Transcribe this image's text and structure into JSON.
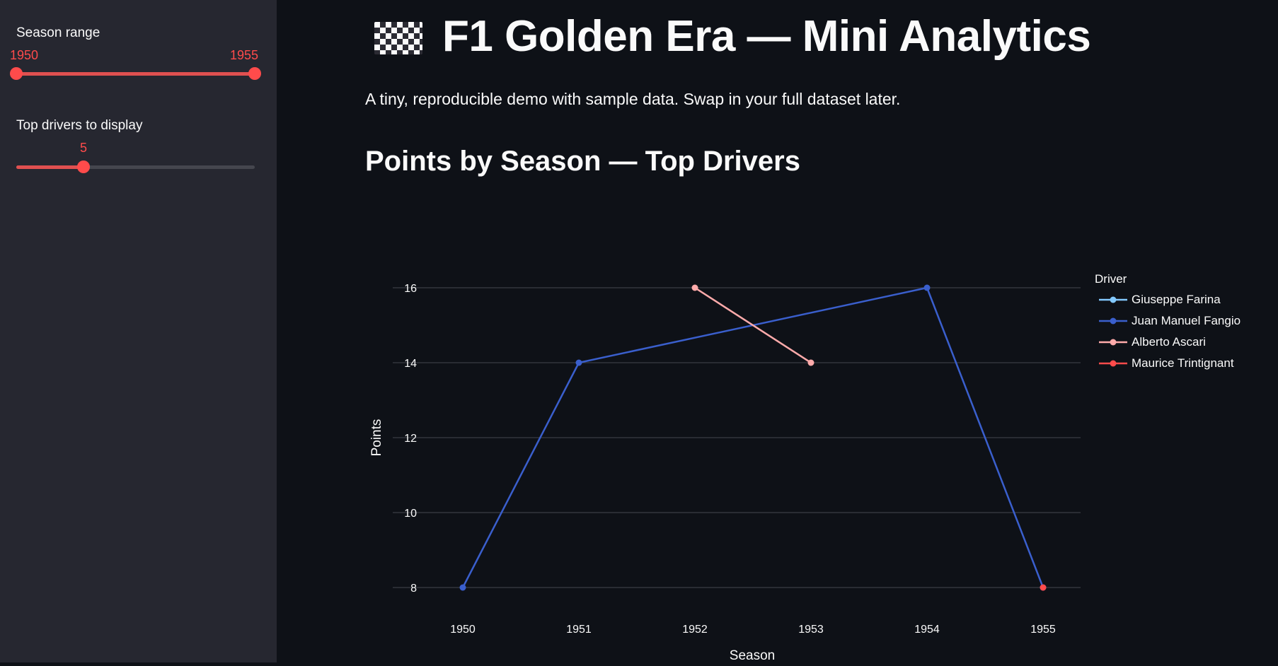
{
  "sidebar": {
    "season_range": {
      "label": "Season range",
      "min_label": "1950",
      "max_label": "1955",
      "min": 1950,
      "max": 1955,
      "low": 1950,
      "high": 1955
    },
    "top_drivers": {
      "label": "Top drivers to display",
      "value_label": "5",
      "value": 5,
      "fraction": 0.29
    }
  },
  "header": {
    "icon": "checkered-flag-icon",
    "title": "F1 Golden Era — Mini Analytics",
    "subtitle": "A tiny, reproducible demo with sample data. Swap in your full dataset later."
  },
  "section": {
    "title": "Points by Season — Top Drivers"
  },
  "chart_data": {
    "type": "line",
    "xlabel": "Season",
    "ylabel": "Points",
    "x": [
      1950,
      1951,
      1952,
      1953,
      1954,
      1955
    ],
    "xlim": [
      1950,
      1955
    ],
    "ylim": [
      8,
      16
    ],
    "yticks": [
      8,
      10,
      12,
      14,
      16
    ],
    "grid": true,
    "legend_title": "Driver",
    "legend_position": "right",
    "series": [
      {
        "name": "Giuseppe Farina",
        "color": "#83c9ff",
        "points": []
      },
      {
        "name": "Juan Manuel Fangio",
        "color": "#3a5fcd",
        "points": [
          [
            1950,
            8
          ],
          [
            1951,
            14
          ],
          [
            1954,
            16
          ],
          [
            1955,
            8
          ]
        ]
      },
      {
        "name": "Alberto Ascari",
        "color": "#ffabab",
        "points": [
          [
            1952,
            16
          ],
          [
            1953,
            14
          ]
        ]
      },
      {
        "name": "Maurice Trintignant",
        "color": "#ff4b4b",
        "points": [
          [
            1955,
            8
          ]
        ]
      }
    ]
  },
  "colors": {
    "background": "#0e1117",
    "sidebar": "#262730",
    "accent": "#ff4b4b",
    "text": "#fafafa"
  }
}
